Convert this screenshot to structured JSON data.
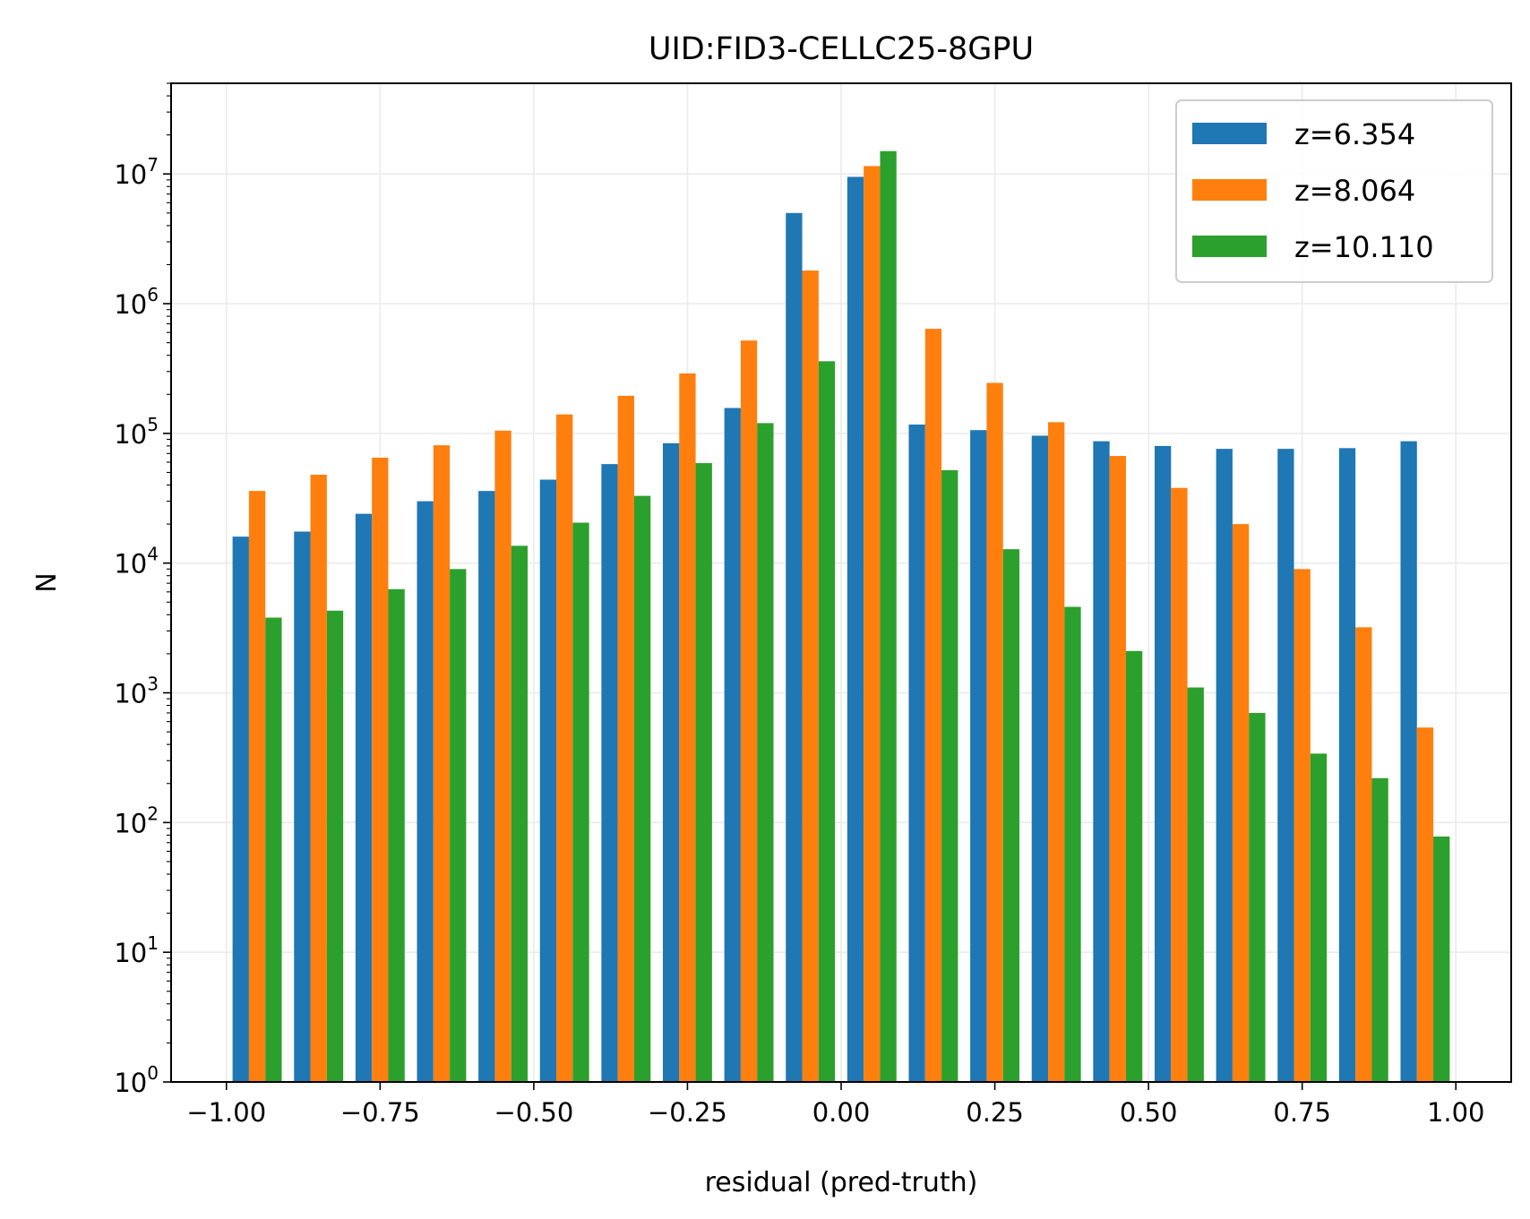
{
  "chart_data": {
    "type": "bar",
    "title": "UID:FID3-CELLC25-8GPU",
    "xlabel": "residual (pred-truth)",
    "ylabel": "N",
    "yscale": "log",
    "xlim": [
      -1.09,
      1.09
    ],
    "ylim": [
      1,
      50000000
    ],
    "xticks": [
      "-1.00",
      "-0.75",
      "-0.50",
      "-0.25",
      "0.00",
      "0.25",
      "0.50",
      "0.75",
      "1.00"
    ],
    "xtick_values": [
      -1.0,
      -0.75,
      -0.5,
      -0.25,
      0.0,
      0.25,
      0.5,
      0.75,
      1.0
    ],
    "yticks": [
      {
        "value": 1,
        "base": "10",
        "exp": "0"
      },
      {
        "value": 10,
        "base": "10",
        "exp": "1"
      },
      {
        "value": 100,
        "base": "10",
        "exp": "2"
      },
      {
        "value": 1000,
        "base": "10",
        "exp": "3"
      },
      {
        "value": 10000,
        "base": "10",
        "exp": "4"
      },
      {
        "value": 100000,
        "base": "10",
        "exp": "5"
      },
      {
        "value": 1000000,
        "base": "10",
        "exp": "6"
      },
      {
        "value": 10000000,
        "base": "10",
        "exp": "7"
      }
    ],
    "grid": true,
    "legend_position": "top-right",
    "bin_edges": [
      -1.0,
      -0.9,
      -0.8,
      -0.7,
      -0.6,
      -0.5,
      -0.4,
      -0.3,
      -0.2,
      -0.1,
      0.0,
      0.1,
      0.2,
      0.3,
      0.4,
      0.5,
      0.6,
      0.7,
      0.8,
      0.9,
      1.0
    ],
    "series": [
      {
        "name": "z=6.354",
        "color": "#1f77b4",
        "values": [
          16000,
          17500,
          24000,
          30000,
          36000,
          44000,
          58000,
          84000,
          157000,
          5000000,
          9500000,
          117000,
          106000,
          96000,
          87000,
          80000,
          76000,
          76000,
          77000,
          87000
        ]
      },
      {
        "name": "z=8.064",
        "color": "#ff7f0e",
        "values": [
          36000,
          48000,
          65000,
          81000,
          105000,
          140000,
          195000,
          290000,
          520000,
          1800000,
          11500000,
          640000,
          245000,
          122000,
          67000,
          38000,
          20000,
          9000,
          3200,
          540
        ]
      },
      {
        "name": "z=10.110",
        "color": "#2ca02c",
        "values": [
          3800,
          4300,
          6300,
          9000,
          13600,
          20500,
          33000,
          59000,
          120000,
          360000,
          15000000,
          52000,
          12800,
          4600,
          2100,
          1100,
          700,
          340,
          220,
          78
        ]
      }
    ]
  }
}
